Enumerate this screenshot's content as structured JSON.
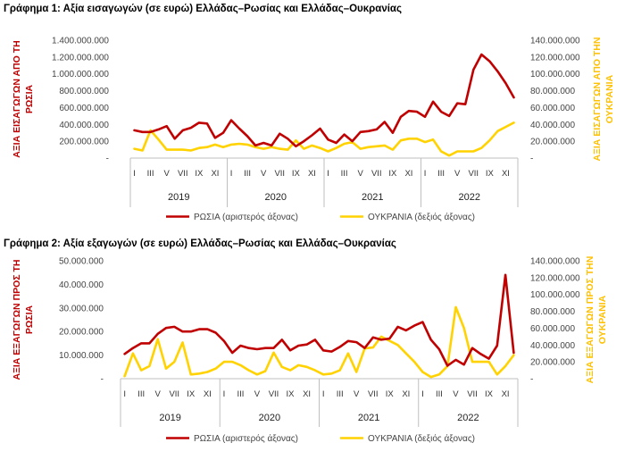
{
  "colors": {
    "russia": "#C00000",
    "ukraine": "#FFD200",
    "axis_left_label": "#C00000",
    "axis_right_label": "#FFC000"
  },
  "chart_data": [
    {
      "type": "line",
      "title": "Γράφημα 1: Αξία εισαγωγών (σε ευρώ) Ελλάδας–Ρωσίας και Ελλάδας–Ουκρανίας",
      "ylabel_left": [
        "ΑΞΙΑ ΕΙΣΑΓΩΓΩΝ ΑΠΟ ΤΗ",
        "ΡΩΣΙΑ"
      ],
      "ylabel_right": [
        "ΑΞΙΑ ΕΙΣΑΓΩΓΩΝ ΑΠΟ ΤΗΝ",
        "ΟΥΚΡΑΝΙΑ"
      ],
      "ylim_left": [
        0,
        1400000000
      ],
      "ylim_right": [
        0,
        140000000
      ],
      "yticks_left": [
        "-",
        "200.000.000",
        "400.000.000",
        "600.000.000",
        "800.000.000",
        "1.000.000.000",
        "1.200.000.000",
        "1.400.000.000"
      ],
      "yticks_right": [
        "-",
        "20.000.000",
        "40.000.000",
        "60.000.000",
        "80.000.000",
        "100.000.000",
        "120.000.000",
        "140.000.000"
      ],
      "month_labels": [
        "I",
        "III",
        "V",
        "VII",
        "IX",
        "XI"
      ],
      "years": [
        "2019",
        "2020",
        "2021",
        "2022"
      ],
      "legend": [
        "ΡΩΣΙΑ (αριστερός άξονας)",
        "ΟΥΚΡΑΝΙΑ (δεξιός άξονας)"
      ],
      "series": [
        {
          "name": "ΡΩΣΙΑ",
          "axis": "left",
          "values": [
            330000000,
            310000000,
            310000000,
            340000000,
            380000000,
            230000000,
            330000000,
            360000000,
            420000000,
            410000000,
            240000000,
            300000000,
            450000000,
            350000000,
            260000000,
            150000000,
            180000000,
            150000000,
            290000000,
            230000000,
            140000000,
            200000000,
            270000000,
            350000000,
            220000000,
            180000000,
            280000000,
            200000000,
            310000000,
            320000000,
            340000000,
            430000000,
            300000000,
            490000000,
            560000000,
            550000000,
            490000000,
            670000000,
            550000000,
            500000000,
            650000000,
            640000000,
            1050000000,
            1230000000,
            1150000000,
            1030000000,
            890000000,
            720000000
          ]
        },
        {
          "name": "ΟΥΚΡΑΝΙΑ",
          "axis": "right",
          "values": [
            11000000,
            9000000,
            33000000,
            22000000,
            10000000,
            10000000,
            10000000,
            9000000,
            12000000,
            13000000,
            16000000,
            13000000,
            16000000,
            17000000,
            16000000,
            13000000,
            11000000,
            13000000,
            11000000,
            10000000,
            21000000,
            11000000,
            15000000,
            12000000,
            8000000,
            12000000,
            17000000,
            19000000,
            11000000,
            13000000,
            14000000,
            15000000,
            10000000,
            21000000,
            23000000,
            23000000,
            19000000,
            22000000,
            8000000,
            3000000,
            8000000,
            8000000,
            8000000,
            12000000,
            21000000,
            32000000,
            37000000,
            42000000
          ]
        }
      ]
    },
    {
      "type": "line",
      "title": "Γράφημα 2: Αξία εξαγωγών (σε ευρώ) Ελλάδας–Ρωσίας και Ελλάδας–Ουκρανίας",
      "ylabel_left": [
        "ΑΞΙΑ ΕΞΑΓΩΓΩΝ ΠΡΟΣ ΤΗ",
        "ΡΩΣΙΑ"
      ],
      "ylabel_right": [
        "ΑΞΙΑ ΕΞΑΓΩΓΩΝ ΠΡΟΣ ΤΗΝ",
        "ΟΥΚΡΑΝΙΑ"
      ],
      "ylim_left": [
        0,
        50000000
      ],
      "ylim_right": [
        0,
        140000000
      ],
      "yticks_left": [
        "-",
        "10.000.000",
        "20.000.000",
        "30.000.000",
        "40.000.000",
        "50.000.000"
      ],
      "yticks_right": [
        "-",
        "20.000.000",
        "40.000.000",
        "60.000.000",
        "80.000.000",
        "100.000.000",
        "120.000.000",
        "140.000.000"
      ],
      "month_labels": [
        "I",
        "III",
        "V",
        "VII",
        "IX",
        "XI"
      ],
      "years": [
        "2019",
        "2020",
        "2021",
        "2022"
      ],
      "legend": [
        "ΡΩΣΙΑ (αριστερός άξονας)",
        "ΟΥΚΡΑΝΙΑ (δεξιός άξονας)"
      ],
      "series": [
        {
          "name": "ΡΩΣΙΑ",
          "axis": "left",
          "values": [
            10500000,
            13000000,
            15000000,
            15000000,
            19000000,
            21500000,
            22000000,
            20000000,
            20000000,
            21000000,
            21000000,
            19500000,
            16000000,
            11000000,
            14000000,
            13000000,
            12500000,
            13000000,
            13000000,
            16500000,
            12000000,
            14000000,
            14500000,
            16500000,
            12000000,
            11500000,
            13500000,
            16000000,
            15500000,
            13000000,
            17500000,
            16500000,
            17000000,
            22000000,
            20500000,
            22500000,
            24000000,
            16500000,
            12500000,
            5500000,
            8000000,
            6000000,
            13000000,
            10500000,
            8500000,
            14000000,
            44000000,
            11000000
          ]
        },
        {
          "name": "ΟΥΚΡΑΝΙΑ",
          "axis": "right",
          "values": [
            3000000,
            30000000,
            10000000,
            15000000,
            47000000,
            12000000,
            20000000,
            43000000,
            5000000,
            6000000,
            8000000,
            12000000,
            20000000,
            20000000,
            16000000,
            10000000,
            5000000,
            9000000,
            31000000,
            14000000,
            10000000,
            16000000,
            14000000,
            10000000,
            5000000,
            6000000,
            10000000,
            30000000,
            8000000,
            36000000,
            37000000,
            50000000,
            45000000,
            40000000,
            30000000,
            20000000,
            8000000,
            2000000,
            5000000,
            15000000,
            85000000,
            60000000,
            20000000,
            20000000,
            20000000,
            5000000,
            15000000,
            28000000
          ]
        }
      ]
    }
  ]
}
